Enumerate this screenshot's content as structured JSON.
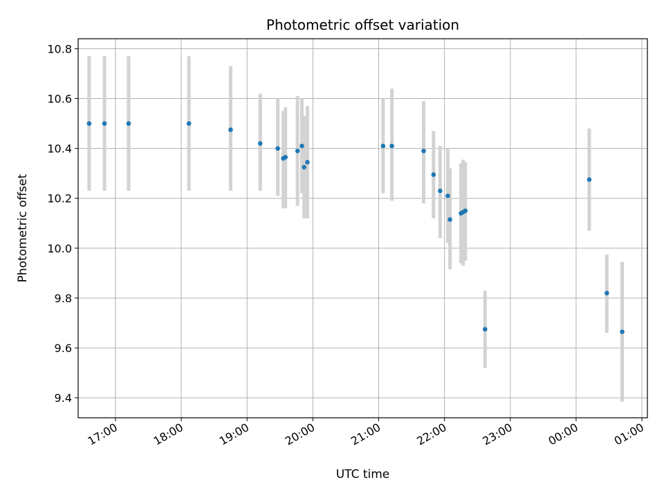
{
  "chart_data": {
    "type": "scatter",
    "title": "Photometric offset variation",
    "xlabel": "UTC time",
    "ylabel": "Photometric offset",
    "grid": true,
    "x_ticks": [
      "17:00",
      "18:00",
      "19:00",
      "20:00",
      "21:00",
      "22:00",
      "23:00",
      "00:00",
      "01:00"
    ],
    "y_ticks": [
      "9.4",
      "9.6",
      "9.8",
      "10.0",
      "10.2",
      "10.4",
      "10.6",
      "10.8"
    ],
    "xlim": [
      "16:26",
      "01:05"
    ],
    "ylim": [
      9.32,
      10.84
    ],
    "marker_color": "#1f77b4",
    "errorbar_color": "#d3d3d3",
    "points": [
      {
        "x": "16:36",
        "y": 10.5,
        "lo": 10.23,
        "hi": 10.77
      },
      {
        "x": "16:50",
        "y": 10.5,
        "lo": 10.23,
        "hi": 10.77
      },
      {
        "x": "17:12",
        "y": 10.5,
        "lo": 10.23,
        "hi": 10.77
      },
      {
        "x": "18:07",
        "y": 10.5,
        "lo": 10.23,
        "hi": 10.77
      },
      {
        "x": "18:45",
        "y": 10.475,
        "lo": 10.23,
        "hi": 10.73
      },
      {
        "x": "19:12",
        "y": 10.42,
        "lo": 10.23,
        "hi": 10.62
      },
      {
        "x": "19:28",
        "y": 10.4,
        "lo": 10.21,
        "hi": 10.6
      },
      {
        "x": "19:33",
        "y": 10.36,
        "lo": 10.16,
        "hi": 10.55
      },
      {
        "x": "19:35",
        "y": 10.365,
        "lo": 10.16,
        "hi": 10.565
      },
      {
        "x": "19:46",
        "y": 10.39,
        "lo": 10.17,
        "hi": 10.61
      },
      {
        "x": "19:50",
        "y": 10.41,
        "lo": 10.22,
        "hi": 10.6
      },
      {
        "x": "19:52",
        "y": 10.325,
        "lo": 10.12,
        "hi": 10.53
      },
      {
        "x": "19:55",
        "y": 10.345,
        "lo": 10.12,
        "hi": 10.57
      },
      {
        "x": "21:04",
        "y": 10.41,
        "lo": 10.22,
        "hi": 10.6
      },
      {
        "x": "21:12",
        "y": 10.41,
        "lo": 10.19,
        "hi": 10.64
      },
      {
        "x": "21:41",
        "y": 10.39,
        "lo": 10.18,
        "hi": 10.59
      },
      {
        "x": "21:50",
        "y": 10.295,
        "lo": 10.12,
        "hi": 10.47
      },
      {
        "x": "21:56",
        "y": 10.23,
        "lo": 10.04,
        "hi": 10.41
      },
      {
        "x": "22:03",
        "y": 10.21,
        "lo": 10.02,
        "hi": 10.4
      },
      {
        "x": "22:05",
        "y": 10.115,
        "lo": 9.915,
        "hi": 10.32
      },
      {
        "x": "22:15",
        "y": 10.14,
        "lo": 9.94,
        "hi": 10.34
      },
      {
        "x": "22:17",
        "y": 10.145,
        "lo": 9.93,
        "hi": 10.355
      },
      {
        "x": "22:19",
        "y": 10.15,
        "lo": 9.95,
        "hi": 10.345
      },
      {
        "x": "22:37",
        "y": 9.675,
        "lo": 9.52,
        "hi": 9.83
      },
      {
        "x": "00:12",
        "y": 10.275,
        "lo": 10.07,
        "hi": 10.48
      },
      {
        "x": "00:28",
        "y": 9.82,
        "lo": 9.66,
        "hi": 9.975
      },
      {
        "x": "00:42",
        "y": 9.665,
        "lo": 9.385,
        "hi": 9.945
      }
    ]
  }
}
